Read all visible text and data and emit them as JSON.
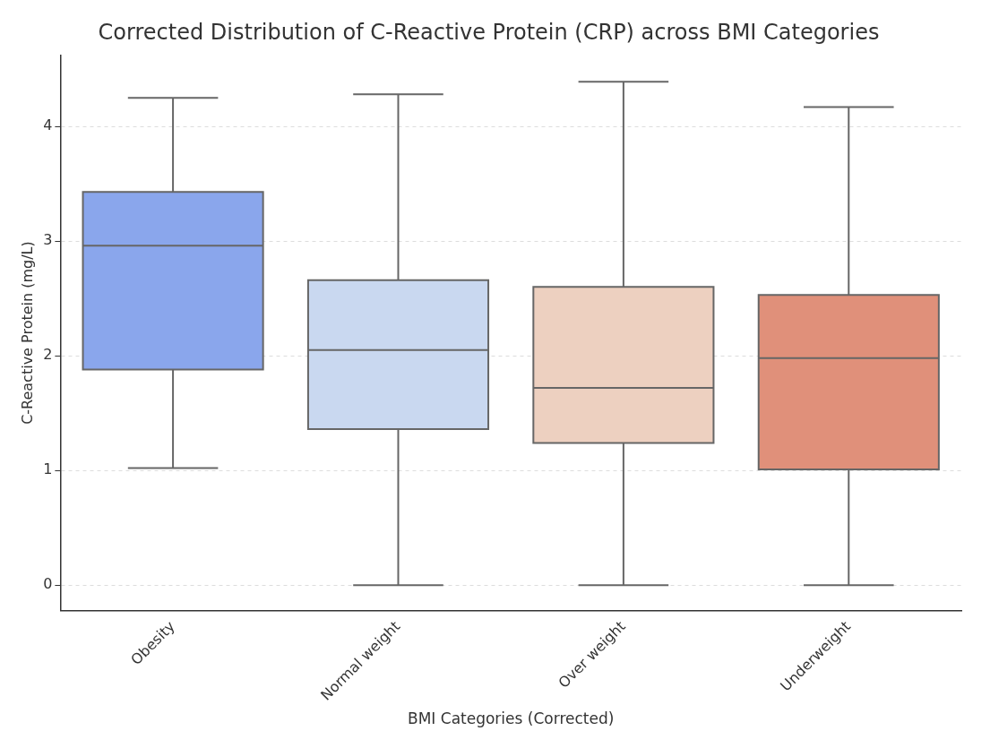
{
  "chart_data": {
    "type": "box",
    "title": "Corrected Distribution of C-Reactive Protein (CRP) across BMI Categories",
    "xlabel": "BMI Categories (Corrected)",
    "ylabel": "C-Reactive Protein (mg/L)",
    "categories": [
      "Obesity",
      "Normal weight",
      "Over weight",
      "Underweight"
    ],
    "colors": [
      "#8aa6ec",
      "#c9d8f0",
      "#edd0c0",
      "#e0907a"
    ],
    "boxes": [
      {
        "low": 1.02,
        "q1": 1.88,
        "median": 2.96,
        "q3": 3.43,
        "high": 4.25
      },
      {
        "low": 0,
        "q1": 1.36,
        "median": 2.05,
        "q3": 2.66,
        "high": 4.28
      },
      {
        "low": 0,
        "q1": 1.24,
        "median": 1.72,
        "q3": 2.6,
        "high": 4.39
      },
      {
        "low": 0,
        "q1": 1.01,
        "median": 1.98,
        "q3": 2.53,
        "high": 4.17
      }
    ],
    "ylim": [
      -0.22,
      4.62
    ],
    "yticks": [
      0,
      1,
      2,
      3,
      4
    ],
    "grid": "y"
  }
}
